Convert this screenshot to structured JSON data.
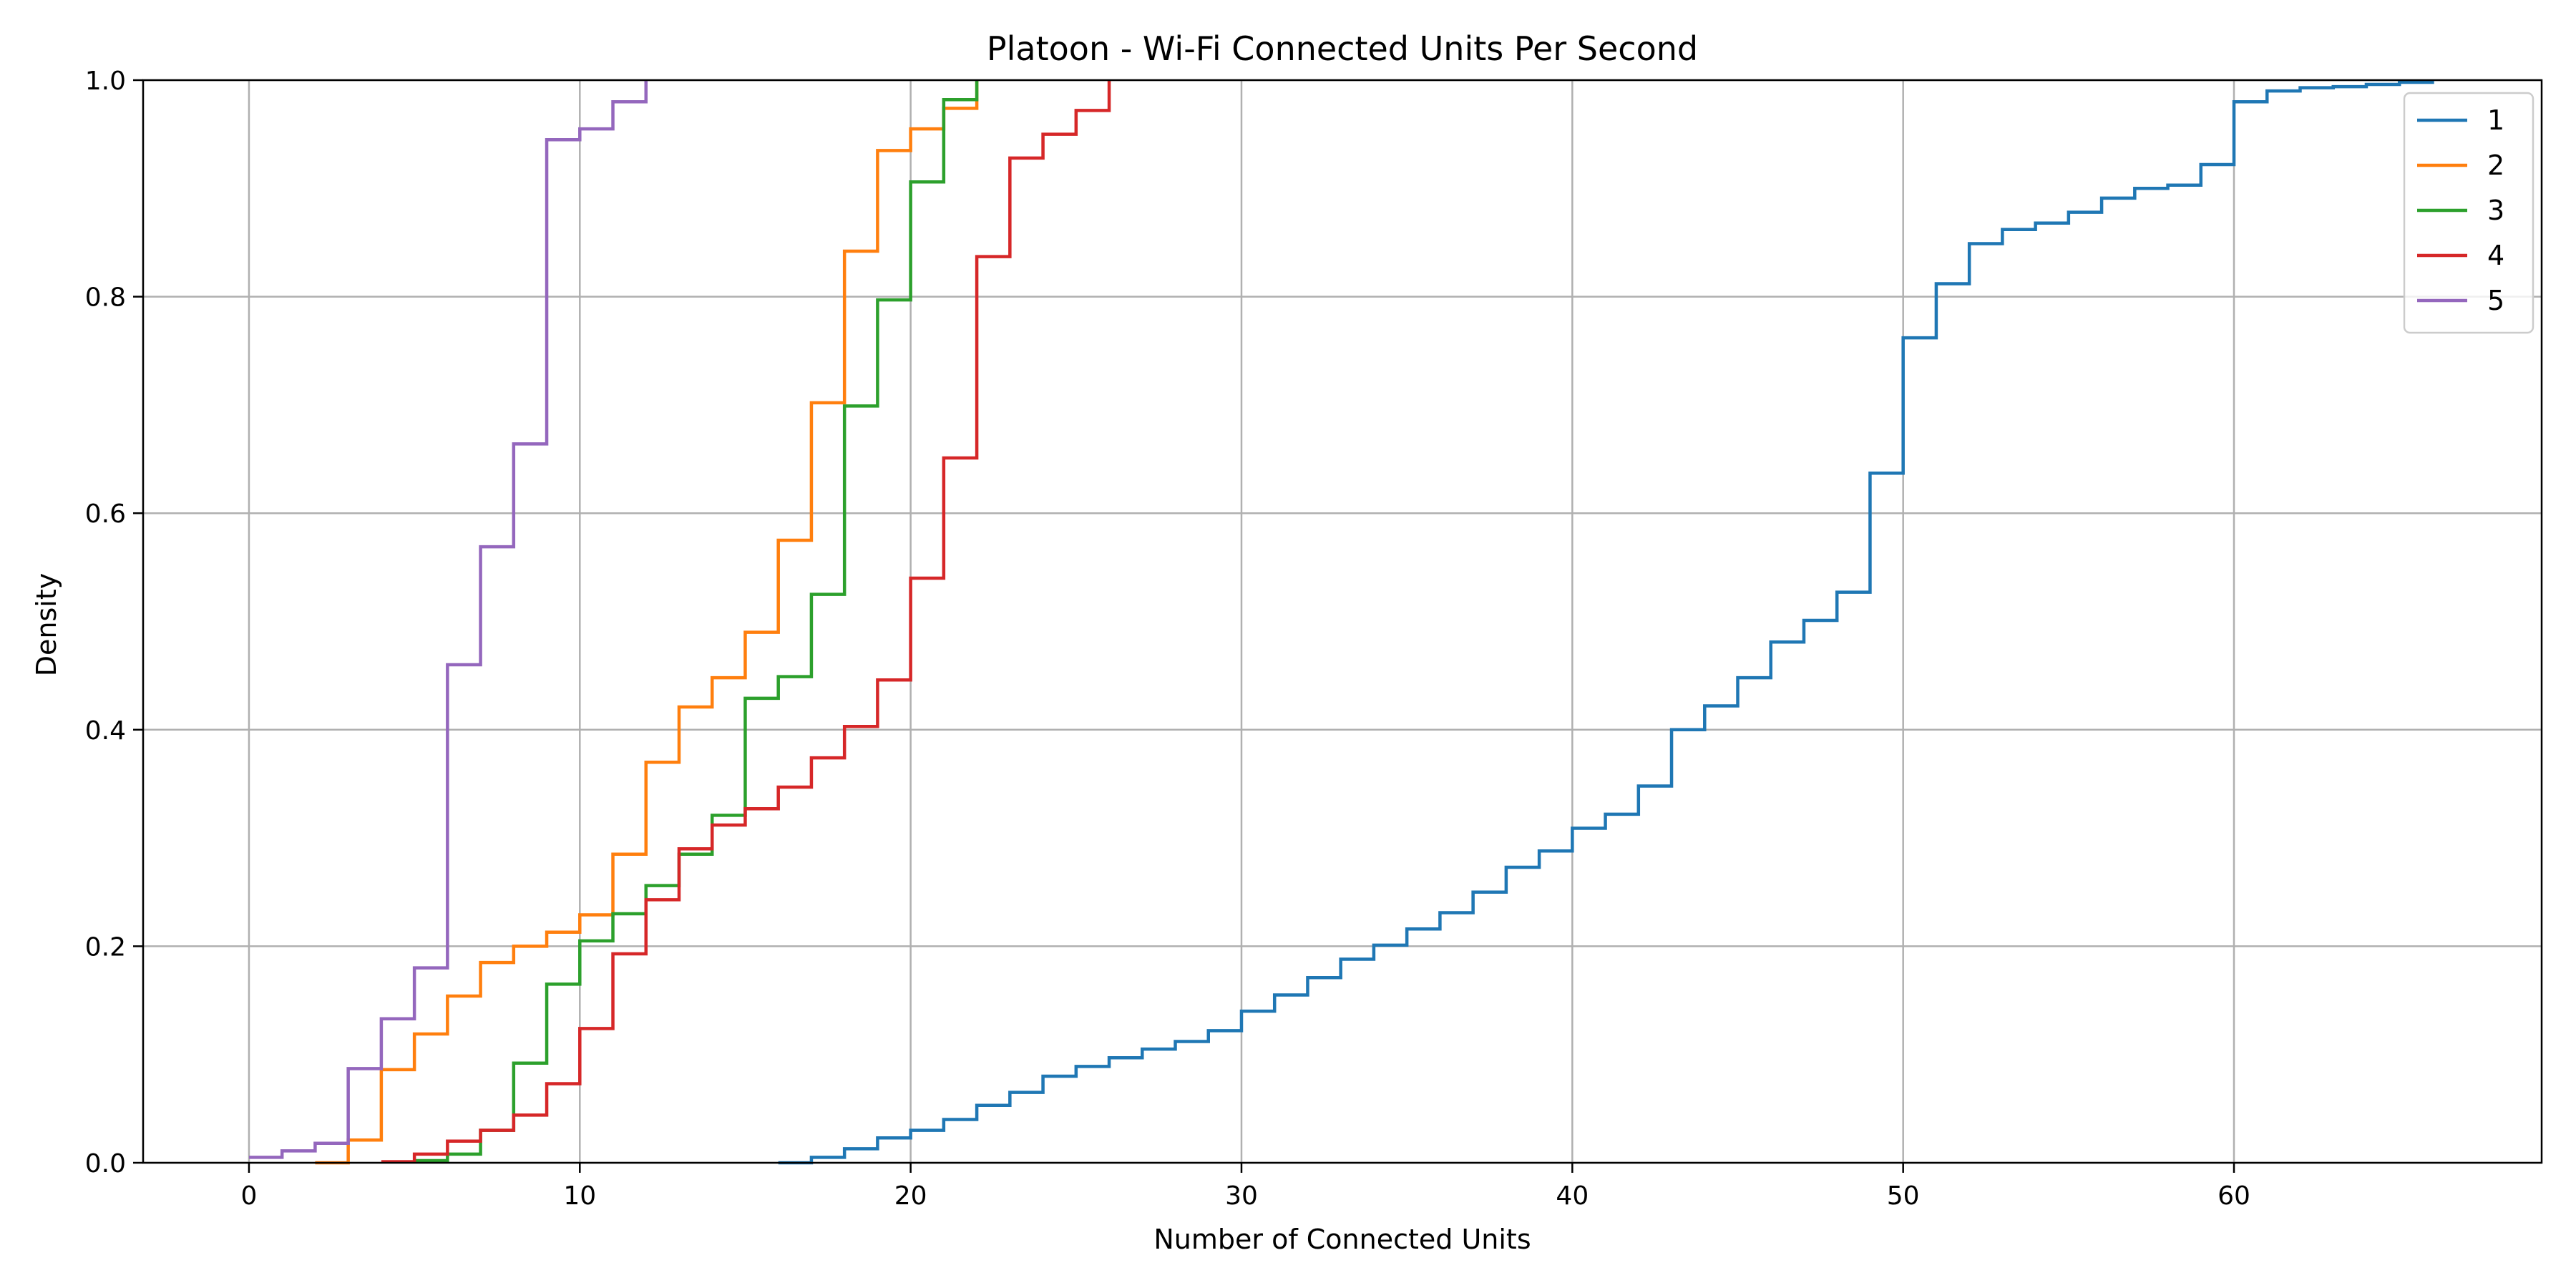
{
  "chart_data": {
    "type": "line",
    "title": "Platoon - Wi-Fi Connected Units Per Second",
    "xlabel": "Number of Connected Units",
    "ylabel": "Density",
    "xlim": [
      -3.2,
      69.3
    ],
    "ylim": [
      0,
      1.0
    ],
    "xticks": [
      0,
      10,
      20,
      30,
      40,
      50,
      60
    ],
    "yticks": [
      0.0,
      0.2,
      0.4,
      0.6,
      0.8,
      1.0
    ],
    "xtick_labels": [
      "0",
      "10",
      "20",
      "30",
      "40",
      "50",
      "60"
    ],
    "ytick_labels": [
      "0.0",
      "0.2",
      "0.4",
      "0.6",
      "0.8",
      "1.0"
    ],
    "grid": true,
    "legend_position": "top-right",
    "step": "post",
    "series": [
      {
        "name": "1",
        "color": "#1f77b4",
        "x": [
          16,
          17,
          18,
          19,
          20,
          21,
          22,
          23,
          24,
          25,
          26,
          27,
          28,
          29,
          30,
          31,
          32,
          33,
          34,
          35,
          36,
          37,
          38,
          39,
          40,
          41,
          42,
          43,
          44,
          45,
          46,
          47,
          48,
          49,
          50,
          51,
          52,
          53,
          54,
          55,
          56,
          57,
          58,
          59,
          60,
          61,
          62,
          63,
          64,
          65,
          66
        ],
        "y": [
          0.0,
          0.005,
          0.013,
          0.023,
          0.03,
          0.04,
          0.053,
          0.065,
          0.08,
          0.089,
          0.097,
          0.105,
          0.112,
          0.122,
          0.14,
          0.155,
          0.171,
          0.188,
          0.201,
          0.216,
          0.231,
          0.25,
          0.273,
          0.288,
          0.309,
          0.322,
          0.348,
          0.4,
          0.422,
          0.448,
          0.481,
          0.501,
          0.527,
          0.637,
          0.762,
          0.812,
          0.849,
          0.862,
          0.868,
          0.878,
          0.891,
          0.9,
          0.903,
          0.922,
          0.98,
          0.99,
          0.993,
          0.994,
          0.996,
          0.998,
          1.0
        ]
      },
      {
        "name": "2",
        "color": "#ff7f0e",
        "x": [
          2,
          3,
          4,
          5,
          6,
          7,
          8,
          9,
          10,
          11,
          12,
          13,
          14,
          15,
          16,
          17,
          18,
          19,
          20,
          21,
          22
        ],
        "y": [
          0.0,
          0.021,
          0.086,
          0.119,
          0.154,
          0.185,
          0.2,
          0.213,
          0.229,
          0.285,
          0.37,
          0.421,
          0.448,
          0.49,
          0.575,
          0.702,
          0.842,
          0.935,
          0.955,
          0.974,
          1.0
        ]
      },
      {
        "name": "3",
        "color": "#2ca02c",
        "x": [
          5,
          6,
          7,
          8,
          9,
          10,
          11,
          12,
          13,
          14,
          15,
          16,
          17,
          18,
          19,
          20,
          21,
          22
        ],
        "y": [
          0.002,
          0.008,
          0.03,
          0.092,
          0.165,
          0.205,
          0.23,
          0.256,
          0.285,
          0.321,
          0.429,
          0.449,
          0.525,
          0.699,
          0.797,
          0.906,
          0.982,
          1.0
        ]
      },
      {
        "name": "4",
        "color": "#d62728",
        "x": [
          4,
          5,
          6,
          7,
          8,
          9,
          10,
          11,
          12,
          13,
          14,
          15,
          16,
          17,
          18,
          19,
          20,
          21,
          22,
          23,
          24,
          25,
          26
        ],
        "y": [
          0.001,
          0.008,
          0.02,
          0.03,
          0.044,
          0.073,
          0.124,
          0.193,
          0.243,
          0.29,
          0.312,
          0.327,
          0.347,
          0.374,
          0.403,
          0.446,
          0.54,
          0.651,
          0.837,
          0.928,
          0.95,
          0.972,
          1.0
        ]
      },
      {
        "name": "5",
        "color": "#9467bd",
        "x": [
          0,
          1,
          2,
          3,
          4,
          5,
          6,
          7,
          8,
          9,
          10,
          11,
          12
        ],
        "y": [
          0.005,
          0.011,
          0.018,
          0.087,
          0.133,
          0.18,
          0.46,
          0.569,
          0.664,
          0.945,
          0.955,
          0.98,
          1.0
        ]
      }
    ]
  }
}
